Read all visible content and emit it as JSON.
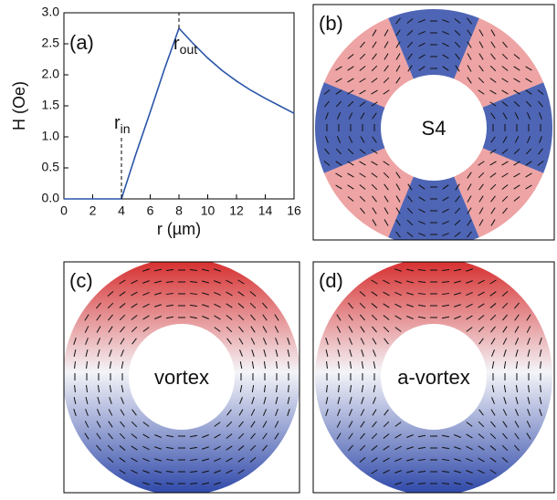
{
  "chart_data": {
    "type": "line",
    "label": "(a)",
    "xlabel": "r (µm)",
    "ylabel": "H (Oe)",
    "x": [
      0,
      4,
      5,
      6,
      7,
      8,
      9,
      10,
      11,
      12,
      13,
      14,
      15,
      16
    ],
    "series": [
      {
        "color": "#2a55a8",
        "values": [
          0,
          0,
          0.72,
          1.4,
          2.1,
          2.75,
          2.5,
          2.27,
          2.07,
          1.9,
          1.75,
          1.62,
          1.5,
          1.38
        ]
      }
    ],
    "xlim": [
      0,
      16
    ],
    "xticks": [
      0,
      2,
      4,
      6,
      8,
      10,
      12,
      14,
      16
    ],
    "ylim": [
      0,
      3
    ],
    "yticks": [
      {
        "value": 0,
        "label": "0.0"
      },
      {
        "value": 0.5,
        "label": "0.5"
      },
      {
        "value": 1,
        "label": "1.0"
      },
      {
        "value": 1.5,
        "label": "1.5"
      },
      {
        "value": 2,
        "label": "2.0"
      },
      {
        "value": 2.5,
        "label": "2.5"
      },
      {
        "value": 3,
        "label": "3.0"
      }
    ],
    "annotations": [
      {
        "x": 4,
        "line": [
          0,
          1.0
        ],
        "text": "r",
        "sub": "in"
      },
      {
        "x": 8,
        "line": [
          2.75,
          3
        ],
        "text": "r",
        "sub": "out"
      }
    ]
  },
  "panels": [
    {
      "label": "(b)",
      "state": "S4"
    },
    {
      "label": "(c)",
      "state": "vortex"
    },
    {
      "label": "(d)",
      "state": "a-vortex"
    }
  ]
}
